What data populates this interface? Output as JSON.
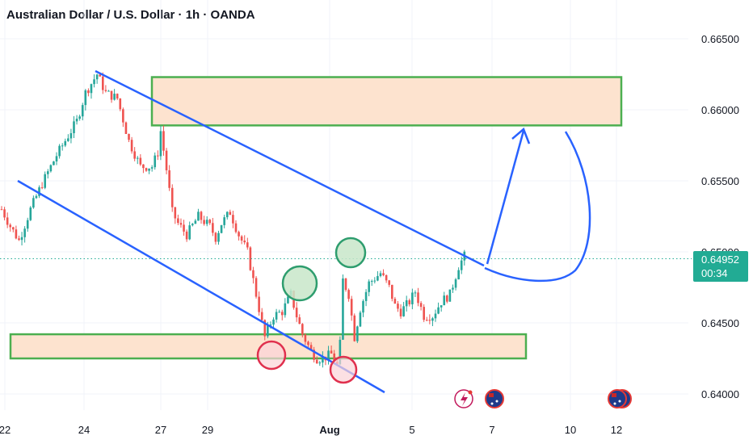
{
  "header": {
    "title": "Australian Dollar / U.S. Dollar · 1h · OANDA"
  },
  "price_tag": {
    "price": "0.64952",
    "countdown": "00:34"
  },
  "colors": {
    "bull": "#26a69a",
    "bear": "#ef5350",
    "trendline": "#2962ff",
    "zone_fill": "#fde3cf",
    "zone_border": "#4caf50",
    "circle_green_fill": "#c8e6c9",
    "circle_green_stroke": "#2e9d6e",
    "circle_red_fill": "#fbd3d7",
    "circle_red_stroke": "#e0304e",
    "arrow": "#2962ff",
    "tag": "#22ab94"
  },
  "chart_data": {
    "type": "candlestick",
    "symbol": "Australian Dollar / U.S. Dollar",
    "interval": "1h",
    "source": "OANDA",
    "ylim": [
      0.6395,
      0.667
    ],
    "y_ticks": [
      "0.66500",
      "0.66000",
      "0.65500",
      "0.65000",
      "0.64500",
      "0.64000"
    ],
    "x_ticks": [
      "22",
      "24",
      "27",
      "29",
      "Aug",
      "5",
      "7",
      "10",
      "12"
    ],
    "last_price": 0.64952,
    "price_path": [
      [
        0,
        0.653
      ],
      [
        3,
        0.6518
      ],
      [
        6,
        0.6508
      ],
      [
        10,
        0.653
      ],
      [
        14,
        0.6548
      ],
      [
        19,
        0.6568
      ],
      [
        26,
        0.6592
      ],
      [
        29,
        0.6612
      ],
      [
        33,
        0.6625
      ],
      [
        36,
        0.6612
      ],
      [
        40,
        0.6608
      ],
      [
        44,
        0.6578
      ],
      [
        48,
        0.656
      ],
      [
        52,
        0.656
      ],
      [
        54,
        0.657
      ],
      [
        55,
        0.6585
      ],
      [
        57,
        0.6558
      ],
      [
        59,
        0.6528
      ],
      [
        61,
        0.652
      ],
      [
        64,
        0.6512
      ],
      [
        68,
        0.6525
      ],
      [
        72,
        0.6518
      ],
      [
        74,
        0.651
      ],
      [
        76,
        0.652
      ],
      [
        79,
        0.6528
      ],
      [
        82,
        0.6512
      ],
      [
        85,
        0.65
      ],
      [
        87,
        0.648
      ],
      [
        89,
        0.646
      ],
      [
        91,
        0.644
      ],
      [
        94,
        0.6455
      ],
      [
        97,
        0.6458
      ],
      [
        100,
        0.647
      ],
      [
        102,
        0.6455
      ],
      [
        104,
        0.6442
      ],
      [
        107,
        0.643
      ],
      [
        109,
        0.6425
      ],
      [
        111,
        0.6425
      ],
      [
        114,
        0.6428
      ],
      [
        116,
        0.642
      ],
      [
        117,
        0.6435
      ],
      [
        118,
        0.648
      ],
      [
        120,
        0.647
      ],
      [
        122,
        0.644
      ],
      [
        124,
        0.646
      ],
      [
        127,
        0.6478
      ],
      [
        131,
        0.6485
      ],
      [
        134,
        0.6475
      ],
      [
        136,
        0.6462
      ],
      [
        138,
        0.6458
      ],
      [
        141,
        0.6465
      ],
      [
        143,
        0.6472
      ],
      [
        146,
        0.6455
      ],
      [
        149,
        0.6455
      ],
      [
        152,
        0.6465
      ],
      [
        155,
        0.647
      ],
      [
        158,
        0.649
      ],
      [
        160,
        0.6497
      ]
    ],
    "annotations": [
      {
        "type": "zone",
        "label": "resistance zone",
        "y_range": [
          0.6589,
          0.6623
        ]
      },
      {
        "type": "zone",
        "label": "support zone",
        "y_range": [
          0.6425,
          0.6442
        ]
      },
      {
        "type": "trendline",
        "label": "upper channel line"
      },
      {
        "type": "trendline",
        "label": "lower channel line"
      },
      {
        "type": "circle",
        "label": "swing high 1",
        "color": "green"
      },
      {
        "type": "circle",
        "label": "swing high 2",
        "color": "green"
      },
      {
        "type": "circle",
        "label": "swing low 1",
        "color": "red"
      },
      {
        "type": "circle",
        "label": "swing low 2",
        "color": "red"
      },
      {
        "type": "path-arrow",
        "label": "projected move to resistance"
      }
    ]
  }
}
